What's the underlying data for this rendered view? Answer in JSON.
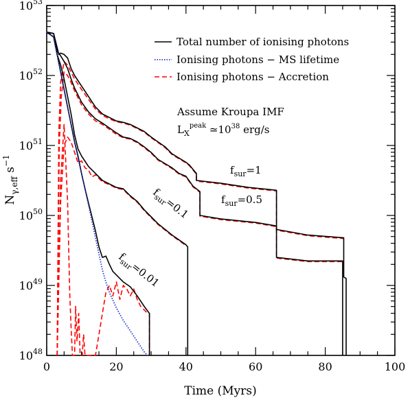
{
  "chart_data": {
    "type": "line",
    "title": "",
    "xlabel": "Time (Myrs)",
    "ylabel_main": "N",
    "ylabel_sub": "γ,eff",
    "ylabel_unit": "s",
    "ylabel_unit_exp": "−1",
    "xlim": [
      0,
      100
    ],
    "ylim_log10": [
      48,
      53
    ],
    "yscale": "log",
    "grid": false,
    "legend_position": "top-right",
    "x_ticks": [
      "0",
      "20",
      "40",
      "60",
      "80",
      "100"
    ],
    "y_ticks": [
      {
        "base": "10",
        "exp": "48"
      },
      {
        "base": "10",
        "exp": "49"
      },
      {
        "base": "10",
        "exp": "50"
      },
      {
        "base": "10",
        "exp": "51"
      },
      {
        "base": "10",
        "exp": "52"
      },
      {
        "base": "10",
        "exp": "53"
      }
    ],
    "legend": [
      {
        "label": "Total number of ionising photons",
        "color": "#000000",
        "style": "solid"
      },
      {
        "label": "Ionising photons − MS lifetime",
        "color": "#2233cc",
        "style": "dotted"
      },
      {
        "label": "Ionising photons − Accretion",
        "color": "#ff0000",
        "style": "dashed"
      }
    ],
    "annotations": {
      "imf": "Assume Kroupa IMF",
      "lx_main": "L",
      "lx_sub": "X",
      "lx_sup": "peak",
      "lx_rest_prefix": " ≃10",
      "lx_exp": "38",
      "lx_units": " erg/s",
      "fsur_label": "f",
      "fsur_sub": "sur",
      "fsur_1": "=1",
      "fsur_05": "=0.5",
      "fsur_01": "=0.1",
      "fsur_001": "=0.01"
    },
    "series": [
      {
        "name": "f_sur=1",
        "kind": "total",
        "points": [
          [
            0,
            52.62
          ],
          [
            2,
            52.6
          ],
          [
            3,
            52.4
          ],
          [
            3.5,
            52.3
          ],
          [
            4,
            52.32
          ],
          [
            5,
            52.3
          ],
          [
            6,
            52.25
          ],
          [
            7,
            52.1
          ],
          [
            8,
            52.0
          ],
          [
            10,
            51.85
          ],
          [
            12,
            51.7
          ],
          [
            14,
            51.55
          ],
          [
            16,
            51.45
          ],
          [
            18,
            51.4
          ],
          [
            20,
            51.35
          ],
          [
            22,
            51.33
          ],
          [
            24,
            51.3
          ],
          [
            26,
            51.25
          ],
          [
            28,
            51.2
          ],
          [
            30,
            51.12
          ],
          [
            32,
            51.05
          ],
          [
            34,
            50.98
          ],
          [
            36,
            50.88
          ],
          [
            38,
            50.82
          ],
          [
            40,
            50.76
          ],
          [
            41,
            50.72
          ],
          [
            42,
            50.66
          ],
          [
            43,
            50.6
          ],
          [
            43,
            50.5
          ],
          [
            50,
            50.46
          ],
          [
            58,
            50.4
          ],
          [
            66,
            50.36
          ],
          [
            66,
            49.8
          ],
          [
            75,
            49.72
          ],
          [
            85.3,
            49.68
          ],
          [
            85.3,
            49.12
          ],
          [
            86,
            49.1
          ],
          [
            86,
            48.0
          ]
        ]
      },
      {
        "name": "f_sur=0.5",
        "kind": "total",
        "points": [
          [
            0,
            52.62
          ],
          [
            2,
            52.6
          ],
          [
            3,
            52.35
          ],
          [
            4,
            52.28
          ],
          [
            5,
            52.2
          ],
          [
            6,
            52.1
          ],
          [
            7,
            51.95
          ],
          [
            8,
            51.82
          ],
          [
            10,
            51.62
          ],
          [
            12,
            51.48
          ],
          [
            14,
            51.38
          ],
          [
            16,
            51.32
          ],
          [
            18,
            51.25
          ],
          [
            20,
            51.18
          ],
          [
            22,
            51.12
          ],
          [
            24,
            51.1
          ],
          [
            26,
            51.05
          ],
          [
            28,
            50.98
          ],
          [
            30,
            50.9
          ],
          [
            32,
            50.8
          ],
          [
            34,
            50.74
          ],
          [
            36,
            50.68
          ],
          [
            38,
            50.6
          ],
          [
            40,
            50.56
          ],
          [
            42,
            50.42
          ],
          [
            44,
            50.34
          ],
          [
            44,
            50.0
          ],
          [
            50,
            49.95
          ],
          [
            60,
            49.9
          ],
          [
            66,
            49.85
          ],
          [
            66,
            49.4
          ],
          [
            75,
            49.35
          ],
          [
            85,
            49.35
          ],
          [
            85,
            48.0
          ]
        ]
      },
      {
        "name": "f_sur=0.1",
        "kind": "total",
        "points": [
          [
            0,
            52.62
          ],
          [
            2,
            52.55
          ],
          [
            3,
            52.3
          ],
          [
            4,
            52.15
          ],
          [
            5,
            51.95
          ],
          [
            6,
            51.7
          ],
          [
            7,
            51.45
          ],
          [
            8,
            51.15
          ],
          [
            9,
            50.95
          ],
          [
            10,
            50.85
          ],
          [
            12,
            50.7
          ],
          [
            14,
            50.6
          ],
          [
            16,
            50.5
          ],
          [
            18,
            50.45
          ],
          [
            20,
            50.4
          ],
          [
            22,
            50.38
          ],
          [
            24,
            50.28
          ],
          [
            26,
            50.2
          ],
          [
            28,
            50.08
          ],
          [
            30,
            49.98
          ],
          [
            32,
            49.88
          ],
          [
            34,
            49.8
          ],
          [
            36,
            49.72
          ],
          [
            38,
            49.65
          ],
          [
            40,
            49.58
          ],
          [
            40.5,
            49.55
          ],
          [
            40.5,
            48.0
          ]
        ]
      },
      {
        "name": "f_sur=0.01",
        "kind": "total",
        "points": [
          [
            0,
            52.62
          ],
          [
            2,
            52.55
          ],
          [
            3,
            52.3
          ],
          [
            4,
            52.05
          ],
          [
            5,
            51.8
          ],
          [
            6,
            51.55
          ],
          [
            7,
            51.3
          ],
          [
            8,
            51.05
          ],
          [
            9,
            50.85
          ],
          [
            10,
            50.6
          ],
          [
            11,
            50.38
          ],
          [
            12,
            50.18
          ],
          [
            13,
            49.98
          ],
          [
            14,
            49.78
          ],
          [
            15,
            49.55
          ],
          [
            16,
            49.4
          ],
          [
            17,
            49.42
          ],
          [
            18,
            49.3
          ],
          [
            19,
            49.2
          ],
          [
            20,
            49.15
          ],
          [
            22,
            49.05
          ],
          [
            24,
            48.98
          ],
          [
            26,
            48.85
          ],
          [
            28,
            48.7
          ],
          [
            29.5,
            48.6
          ],
          [
            29.5,
            48.0
          ]
        ]
      },
      {
        "name": "MS lifetime",
        "kind": "ms",
        "points": [
          [
            0,
            52.62
          ],
          [
            2,
            52.55
          ],
          [
            3,
            52.3
          ],
          [
            4,
            52.05
          ],
          [
            5,
            51.8
          ],
          [
            6,
            51.55
          ],
          [
            7,
            51.3
          ],
          [
            8,
            51.05
          ],
          [
            9,
            50.82
          ],
          [
            10,
            50.6
          ],
          [
            11,
            50.38
          ],
          [
            12,
            50.15
          ],
          [
            13,
            49.92
          ],
          [
            14,
            49.68
          ],
          [
            15,
            49.45
          ],
          [
            16,
            49.22
          ],
          [
            17,
            49.05
          ],
          [
            18,
            48.9
          ],
          [
            20,
            48.68
          ],
          [
            22,
            48.5
          ],
          [
            24,
            48.35
          ],
          [
            26,
            48.2
          ],
          [
            28,
            48.05
          ],
          [
            29,
            48.0
          ]
        ]
      },
      {
        "name": "Accretion f_sur=1",
        "kind": "acc",
        "points": [
          [
            3,
            48.0
          ],
          [
            3.5,
            51.2
          ],
          [
            4,
            51.9
          ],
          [
            5,
            52.2
          ],
          [
            6,
            52.15
          ],
          [
            7,
            52.05
          ],
          [
            8,
            51.95
          ],
          [
            10,
            51.8
          ],
          [
            12,
            51.66
          ],
          [
            14,
            51.52
          ],
          [
            16,
            51.43
          ],
          [
            18,
            51.38
          ],
          [
            20,
            51.34
          ],
          [
            22,
            51.32
          ],
          [
            24,
            51.29
          ],
          [
            26,
            51.24
          ],
          [
            28,
            51.19
          ],
          [
            30,
            51.11
          ],
          [
            32,
            51.04
          ],
          [
            34,
            50.97
          ],
          [
            36,
            50.87
          ],
          [
            38,
            50.81
          ],
          [
            40,
            50.75
          ],
          [
            41,
            50.71
          ],
          [
            42,
            50.65
          ],
          [
            43,
            50.59
          ],
          [
            43,
            50.49
          ],
          [
            50,
            50.45
          ],
          [
            58,
            50.39
          ],
          [
            66,
            50.35
          ],
          [
            66,
            49.79
          ],
          [
            75,
            49.71
          ],
          [
            85.3,
            49.67
          ]
        ]
      },
      {
        "name": "Accretion f_sur=0.5",
        "kind": "acc",
        "points": [
          [
            3,
            48.0
          ],
          [
            3.6,
            51.0
          ],
          [
            4.2,
            51.7
          ],
          [
            5,
            52.05
          ],
          [
            6,
            52.0
          ],
          [
            7,
            51.9
          ],
          [
            8,
            51.78
          ],
          [
            10,
            51.58
          ],
          [
            12,
            51.45
          ],
          [
            14,
            51.35
          ],
          [
            16,
            51.3
          ],
          [
            18,
            51.23
          ],
          [
            20,
            51.16
          ],
          [
            22,
            51.11
          ],
          [
            24,
            51.09
          ],
          [
            26,
            51.04
          ],
          [
            28,
            50.97
          ],
          [
            30,
            50.89
          ],
          [
            32,
            50.79
          ],
          [
            34,
            50.73
          ],
          [
            36,
            50.67
          ],
          [
            38,
            50.59
          ],
          [
            40,
            50.55
          ],
          [
            42,
            50.41
          ],
          [
            44,
            50.33
          ],
          [
            44,
            49.99
          ],
          [
            50,
            49.94
          ],
          [
            60,
            49.89
          ],
          [
            66,
            49.84
          ],
          [
            66,
            49.39
          ],
          [
            75,
            49.34
          ],
          [
            85,
            49.34
          ]
        ]
      },
      {
        "name": "Accretion f_sur=0.1",
        "kind": "acc",
        "points": [
          [
            3,
            48.0
          ],
          [
            4,
            50.2
          ],
          [
            5,
            51.0
          ],
          [
            6,
            51.12
          ],
          [
            7,
            51.05
          ],
          [
            8,
            50.9
          ],
          [
            9,
            50.75
          ],
          [
            10,
            50.78
          ],
          [
            11,
            50.68
          ],
          [
            12,
            50.65
          ],
          [
            13,
            50.55
          ],
          [
            14,
            50.58
          ],
          [
            16,
            50.48
          ],
          [
            18,
            50.44
          ],
          [
            20,
            50.39
          ],
          [
            22,
            50.37
          ],
          [
            24,
            50.27
          ],
          [
            26,
            50.19
          ],
          [
            28,
            50.07
          ],
          [
            30,
            49.97
          ],
          [
            32,
            49.87
          ],
          [
            34,
            49.79
          ],
          [
            36,
            49.71
          ],
          [
            38,
            49.64
          ],
          [
            40,
            49.57
          ]
        ]
      },
      {
        "name": "Accretion f_sur=0.01",
        "kind": "acc",
        "points": [
          [
            3,
            48.0
          ],
          [
            4,
            50.5
          ],
          [
            5,
            51.3
          ],
          [
            6,
            50.2
          ],
          [
            6.6,
            48.9
          ],
          [
            7,
            48.4
          ],
          [
            7.4,
            48.0
          ],
          [
            8,
            48.0
          ],
          [
            8.3,
            48.7
          ],
          [
            8.7,
            48.2
          ],
          [
            9.2,
            48.6
          ],
          [
            9.6,
            48.0
          ],
          [
            10.2,
            48.0
          ],
          [
            10.6,
            48.3
          ],
          [
            11,
            48.0
          ],
          [
            14,
            48.0
          ],
          [
            15,
            48.3
          ],
          [
            16,
            48.6
          ],
          [
            17,
            48.9
          ],
          [
            18,
            49.0
          ],
          [
            19,
            48.85
          ],
          [
            20,
            49.05
          ],
          [
            21,
            48.8
          ],
          [
            22,
            49.0
          ],
          [
            23,
            48.95
          ],
          [
            24,
            48.85
          ],
          [
            25,
            48.95
          ],
          [
            26,
            48.8
          ],
          [
            27,
            48.7
          ],
          [
            28,
            48.65
          ],
          [
            29,
            48.6
          ],
          [
            29.5,
            48.6
          ],
          [
            29.5,
            48.0
          ]
        ]
      }
    ]
  }
}
